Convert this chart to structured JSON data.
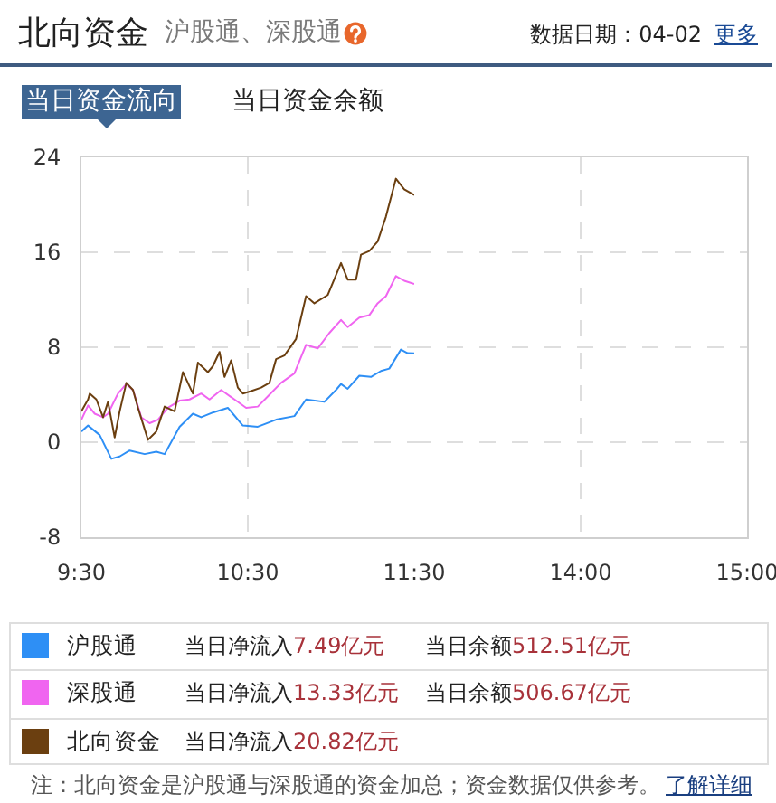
{
  "chart_data": [
    {
      "type": "line",
      "title": "北向资金",
      "subtitle": "沪股通、深股通",
      "xlim": [
        9.5,
        11.5
      ],
      "xticks": [
        {
          "value": 9.5,
          "label": "9:30"
        },
        {
          "value": 10.5,
          "label": "10:30"
        },
        {
          "value": 11.5,
          "label": "11:30"
        }
      ],
      "ylim": [
        -8,
        24
      ],
      "yticks": [
        -8,
        0,
        8,
        16,
        24
      ],
      "grid": true,
      "legend": "bottom",
      "series": [
        {
          "name": "沪股通",
          "color": "#2e8ff5",
          "x": [
            9.5,
            9.54,
            9.61,
            9.68,
            9.73,
            9.79,
            9.88,
            9.95,
            10.0,
            10.09,
            10.17,
            10.22,
            10.29,
            10.38,
            10.47,
            10.56,
            10.67,
            10.78,
            10.85,
            10.96,
            11.03,
            11.06,
            11.1,
            11.17,
            11.24,
            11.3,
            11.35,
            11.42,
            11.46,
            11.5
          ],
          "values": [
            0.9,
            1.4,
            0.6,
            -1.4,
            -1.2,
            -0.7,
            -1.0,
            -0.8,
            -1.0,
            1.3,
            2.4,
            2.1,
            2.5,
            2.9,
            1.4,
            1.3,
            1.9,
            2.2,
            3.6,
            3.4,
            4.4,
            4.9,
            4.5,
            5.6,
            5.5,
            6.0,
            6.2,
            7.8,
            7.5,
            7.49
          ]
        },
        {
          "name": "深股通",
          "color": "#f065f0",
          "x": [
            9.5,
            9.54,
            9.58,
            9.63,
            9.66,
            9.72,
            9.77,
            9.81,
            9.86,
            9.91,
            9.96,
            10.02,
            10.09,
            10.15,
            10.22,
            10.27,
            10.34,
            10.42,
            10.49,
            10.56,
            10.63,
            10.7,
            10.78,
            10.85,
            10.92,
            10.99,
            11.06,
            11.1,
            11.17,
            11.23,
            11.28,
            11.33,
            11.39,
            11.44,
            11.5
          ],
          "values": [
            1.9,
            3.1,
            2.4,
            2.1,
            2.4,
            4.1,
            4.9,
            4.4,
            2.1,
            1.6,
            1.9,
            2.9,
            3.5,
            3.6,
            4.1,
            3.6,
            4.4,
            3.6,
            2.9,
            3.0,
            4.0,
            5.0,
            5.8,
            8.2,
            7.9,
            9.2,
            10.3,
            9.7,
            10.5,
            10.7,
            11.7,
            12.3,
            14.0,
            13.6,
            13.33
          ]
        },
        {
          "name": "北向资金",
          "color": "#6b3f10",
          "x": [
            9.5,
            9.54,
            9.55,
            9.59,
            9.63,
            9.66,
            9.7,
            9.73,
            9.77,
            9.81,
            9.84,
            9.9,
            9.95,
            10.0,
            10.06,
            10.11,
            10.17,
            10.2,
            10.26,
            10.29,
            10.33,
            10.36,
            10.4,
            10.44,
            10.47,
            10.52,
            10.58,
            10.63,
            10.67,
            10.72,
            10.79,
            10.85,
            10.9,
            10.98,
            11.06,
            11.1,
            11.15,
            11.18,
            11.23,
            11.28,
            11.33,
            11.39,
            11.44,
            11.5
          ],
          "values": [
            2.6,
            3.6,
            4.1,
            3.6,
            2.1,
            3.4,
            0.4,
            2.6,
            5.0,
            4.4,
            2.9,
            0.2,
            0.9,
            3.0,
            2.6,
            5.9,
            4.1,
            6.7,
            5.9,
            6.4,
            7.6,
            5.5,
            6.9,
            4.6,
            4.1,
            4.3,
            4.6,
            5.0,
            7.0,
            7.3,
            8.7,
            12.3,
            11.7,
            12.4,
            15.1,
            13.7,
            13.7,
            15.8,
            16.1,
            16.9,
            19.0,
            22.2,
            21.3,
            20.82
          ]
        }
      ],
      "annotations": [
        "数据日期：04-02",
        "更多",
        "当日资金流向",
        "当日资金余额",
        "当日净流入7.49亿元",
        "当日余额512.51亿元",
        "当日净流入13.33亿元",
        "当日余额506.67亿元",
        "当日净流入20.82亿元",
        "注：北向资金是沪股通与深股通的资金加总；资金数据仅供参考。",
        "了解详细"
      ]
    },
    {
      "type": "line",
      "xlim": [
        13,
        15
      ],
      "xticks": [
        {
          "value": 14,
          "label": "14:00"
        },
        {
          "value": 15,
          "label": "15:00"
        }
      ],
      "ylim": [
        -8,
        24
      ],
      "yticks": [
        -8,
        0,
        8,
        16,
        24
      ],
      "grid": true,
      "tick_labels": "x"
    }
  ]
}
